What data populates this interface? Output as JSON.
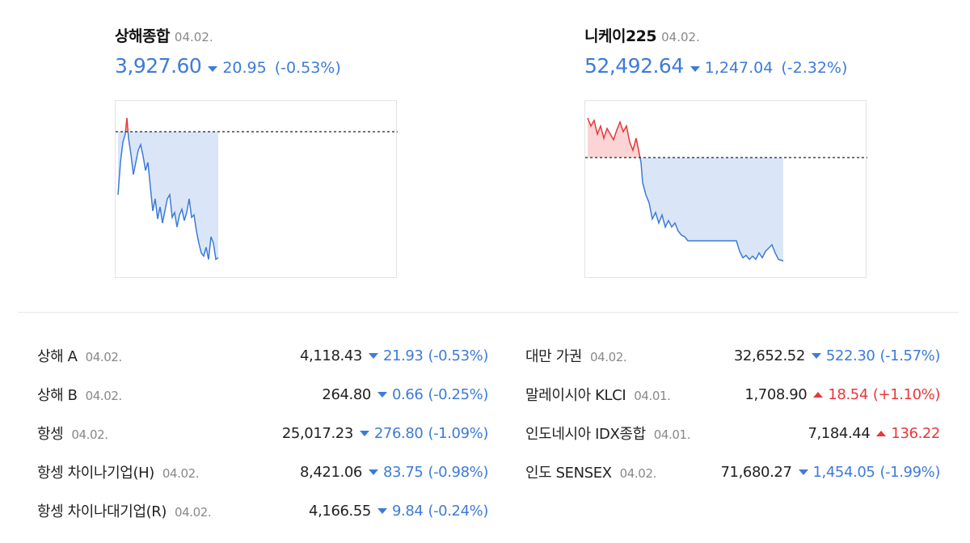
{
  "featured": [
    {
      "name": "상해종합",
      "date": "04.02.",
      "price": "3,927.60",
      "change": "20.95",
      "change_pct": "(-0.53%)",
      "direction": "down"
    },
    {
      "name": "니케이225",
      "date": "04.02.",
      "price": "52,492.64",
      "change": "1,247.04",
      "change_pct": "(-2.32%)",
      "direction": "down"
    }
  ],
  "indices": [
    [
      {
        "name": "상해 A",
        "date": "04.02.",
        "price": "4,118.43",
        "change": "21.93",
        "change_pct": "(-0.53%)",
        "direction": "down"
      },
      {
        "name": "상해 B",
        "date": "04.02.",
        "price": "264.80",
        "change": "0.66",
        "change_pct": "(-0.25%)",
        "direction": "down"
      },
      {
        "name": "항셍",
        "date": "04.02.",
        "price": "25,017.23",
        "change": "276.80",
        "change_pct": "(-1.09%)",
        "direction": "down"
      },
      {
        "name": "항셍 차이나기업(H)",
        "date": "04.02.",
        "price": "8,421.06",
        "change": "83.75",
        "change_pct": "(-0.98%)",
        "direction": "down"
      },
      {
        "name": "항셍 차이나대기업(R)",
        "date": "04.02.",
        "price": "4,166.55",
        "change": "9.84",
        "change_pct": "(-0.24%)",
        "direction": "down"
      }
    ],
    [
      {
        "name": "대만 가권",
        "date": "04.02.",
        "price": "32,652.52",
        "change": "522.30",
        "change_pct": "(-1.57%)",
        "direction": "down"
      },
      {
        "name": "말레이시아 KLCI",
        "date": "04.01.",
        "price": "1,708.90",
        "change": "18.54",
        "change_pct": "(+1.10%)",
        "direction": "up"
      },
      {
        "name": "인도네시아 IDX종합",
        "date": "04.01.",
        "price": "7,184.44",
        "change": "136.22",
        "direction": "up"
      },
      {
        "name": "인도 SENSEX",
        "date": "04.02.",
        "price": "71,680.27",
        "change": "1,454.05",
        "change_pct": "(-1.99%)",
        "direction": "down"
      }
    ]
  ]
}
